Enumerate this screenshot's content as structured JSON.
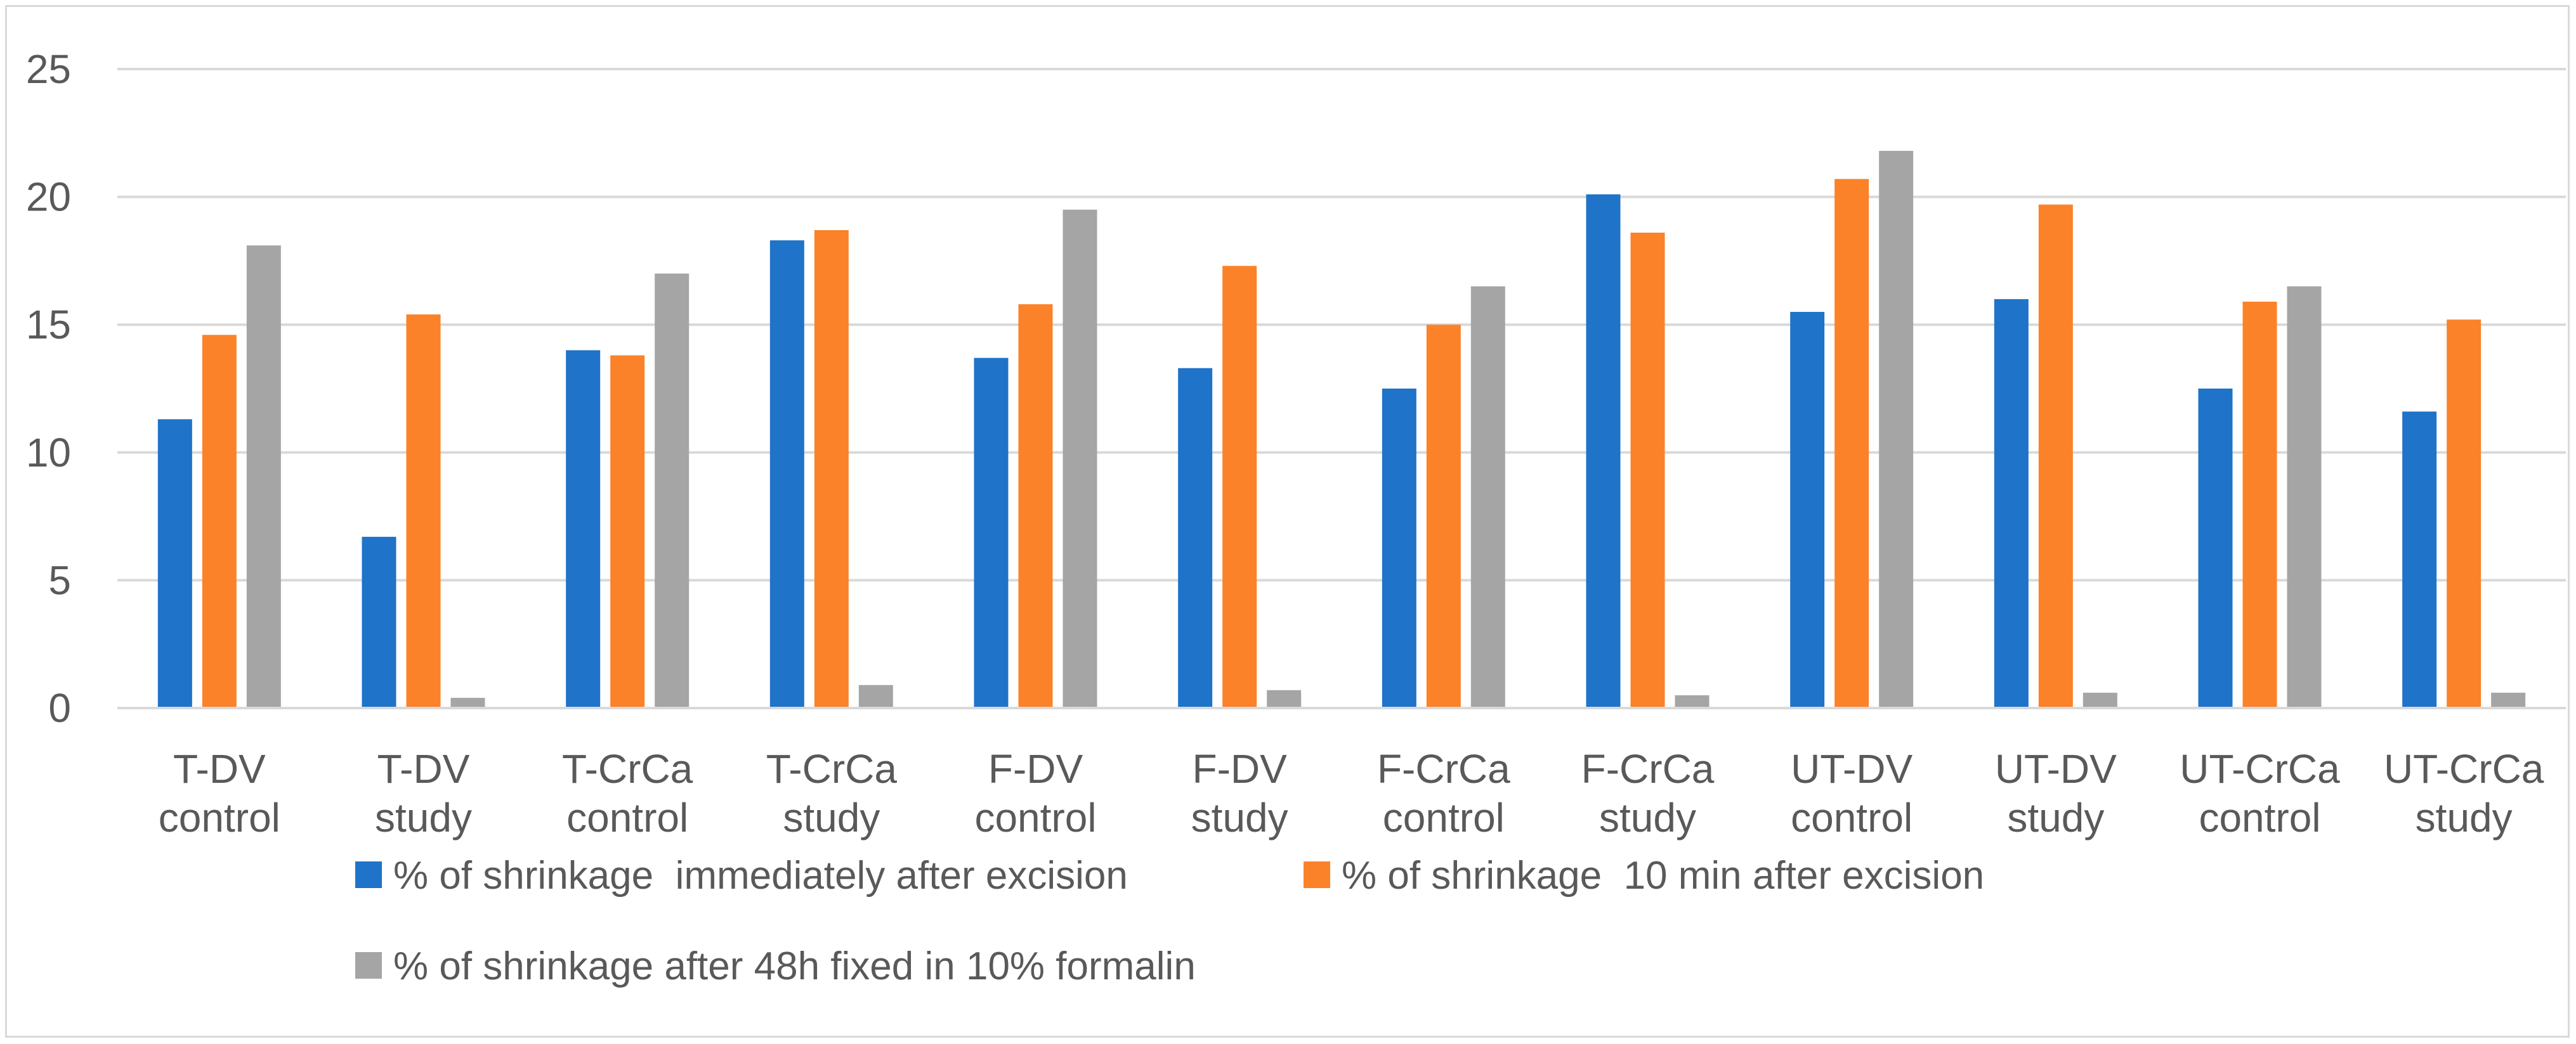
{
  "chart_data": {
    "type": "bar",
    "title": "",
    "xlabel": "",
    "ylabel": "",
    "ylim": [
      0,
      25
    ],
    "yticks": [
      0,
      5,
      10,
      15,
      20,
      25
    ],
    "grid": true,
    "legend_position": "bottom",
    "categories": [
      [
        "T-DV",
        "control"
      ],
      [
        "T-DV",
        "study"
      ],
      [
        "T-CrCa",
        "control"
      ],
      [
        "T-CrCa",
        "study"
      ],
      [
        "F-DV",
        "control"
      ],
      [
        "F-DV",
        "study"
      ],
      [
        "F-CrCa",
        "control"
      ],
      [
        "F-CrCa",
        "study"
      ],
      [
        "UT-DV",
        "control"
      ],
      [
        "UT-DV",
        "study"
      ],
      [
        "UT-CrCa",
        "control"
      ],
      [
        "UT-CrCa",
        "study"
      ]
    ],
    "series": [
      {
        "name": "% of shrinkage  immediately after excision",
        "color": "#1f73c8",
        "values": [
          11.3,
          6.7,
          14.0,
          18.3,
          13.7,
          13.3,
          12.5,
          20.1,
          15.5,
          16.0,
          12.5,
          11.6
        ]
      },
      {
        "name": "% of shrinkage  10 min after excision",
        "color": "#fb8228",
        "values": [
          14.6,
          15.4,
          13.8,
          18.7,
          15.8,
          17.3,
          15.0,
          18.6,
          20.7,
          19.7,
          15.9,
          15.2
        ]
      },
      {
        "name": "% of shrinkage after 48h fixed in 10% formalin",
        "color": "#a5a5a5",
        "values": [
          18.1,
          0.4,
          17.0,
          0.9,
          19.5,
          0.7,
          16.5,
          0.5,
          21.8,
          0.6,
          16.5,
          0.6
        ]
      }
    ],
    "gridline_color": "#d9d9d9",
    "axis_color": "#d9d9d9"
  }
}
